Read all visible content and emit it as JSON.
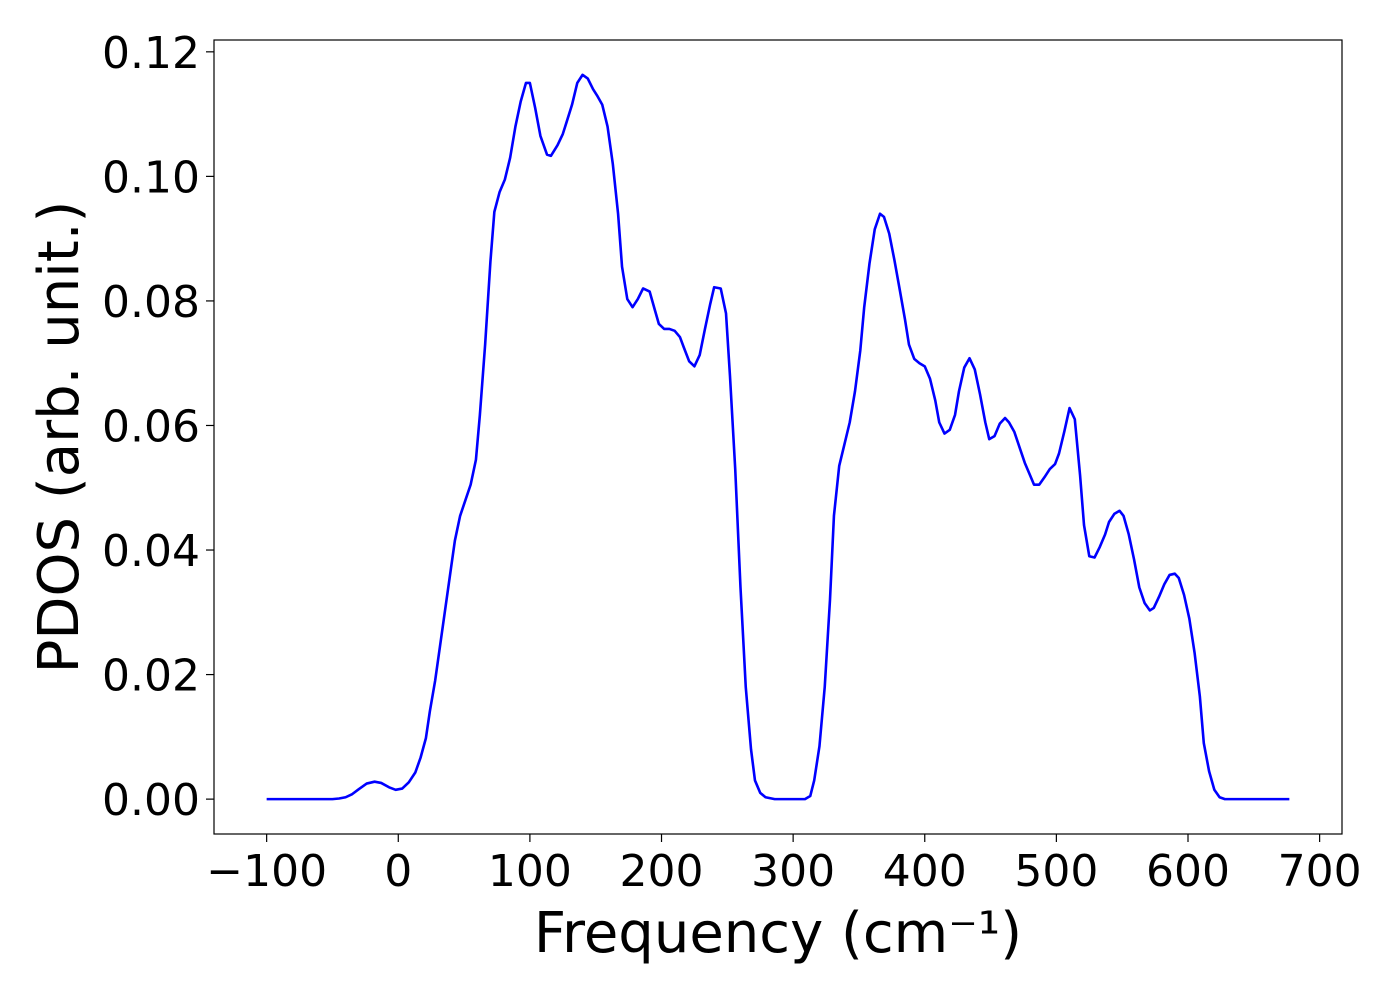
{
  "chart_data": {
    "type": "line",
    "xlabel": "Frequency (cm⁻¹)",
    "ylabel": "PDOS (arb. unit.)",
    "color": "#0000ff",
    "x": [
      -100,
      -80,
      -60,
      -50,
      -45,
      -40,
      -35,
      -30,
      -24,
      -18,
      -13,
      -7,
      -2,
      3,
      8,
      13,
      17,
      21,
      24,
      28,
      32,
      36,
      40,
      43,
      47,
      51,
      55,
      59,
      62,
      66,
      70,
      73,
      77,
      81,
      85,
      89,
      93,
      97,
      100,
      104,
      108,
      113,
      116,
      121,
      125,
      128,
      132,
      136,
      140,
      144,
      148,
      151,
      155,
      159,
      163,
      167,
      170,
      174,
      178,
      182,
      186,
      191,
      195,
      198,
      202,
      206,
      210,
      214,
      217,
      221,
      225,
      229,
      233,
      237,
      240,
      245,
      249,
      252,
      256,
      260,
      264,
      268,
      271,
      275,
      279,
      286,
      309,
      313,
      316,
      320,
      324,
      328,
      331,
      335,
      339,
      343,
      347,
      351,
      354,
      358,
      362,
      366,
      369,
      373,
      377,
      381,
      385,
      388,
      392,
      396,
      400,
      404,
      408,
      411,
      415,
      419,
      423,
      426,
      430,
      434,
      438,
      442,
      446,
      449,
      453,
      457,
      461,
      464,
      468,
      472,
      476,
      480,
      483,
      487,
      491,
      495,
      499,
      502,
      506,
      510,
      514,
      518,
      521,
      525,
      529,
      533,
      537,
      540,
      544,
      548,
      551,
      555,
      559,
      563,
      567,
      571,
      574,
      578,
      582,
      586,
      590,
      593,
      597,
      601,
      605,
      609,
      612,
      616,
      620,
      624,
      628,
      650,
      677
    ],
    "values": [
      0,
      0,
      0,
      0,
      0.0001,
      0.0003,
      0.0008,
      0.0016,
      0.0025,
      0.0028,
      0.0026,
      0.0019,
      0.0015,
      0.0017,
      0.0027,
      0.0043,
      0.0067,
      0.0098,
      0.0141,
      0.019,
      0.025,
      0.031,
      0.037,
      0.0415,
      0.0455,
      0.048,
      0.0505,
      0.0545,
      0.0617,
      0.073,
      0.0863,
      0.0943,
      0.0975,
      0.0995,
      0.103,
      0.108,
      0.112,
      0.115,
      0.115,
      0.111,
      0.1065,
      0.1035,
      0.1033,
      0.105,
      0.1068,
      0.1088,
      0.1115,
      0.115,
      0.1163,
      0.1157,
      0.114,
      0.113,
      0.1115,
      0.108,
      0.102,
      0.094,
      0.0855,
      0.0803,
      0.079,
      0.0803,
      0.082,
      0.0815,
      0.0785,
      0.0763,
      0.0755,
      0.0755,
      0.0752,
      0.0742,
      0.0725,
      0.0703,
      0.0695,
      0.0713,
      0.0755,
      0.0795,
      0.0822,
      0.082,
      0.078,
      0.068,
      0.053,
      0.034,
      0.018,
      0.008,
      0.003,
      0.001,
      0.0003,
      0,
      0,
      0.0005,
      0.003,
      0.0085,
      0.018,
      0.032,
      0.0455,
      0.0535,
      0.057,
      0.0605,
      0.0655,
      0.072,
      0.079,
      0.086,
      0.0915,
      0.094,
      0.0935,
      0.0908,
      0.0865,
      0.0818,
      0.077,
      0.073,
      0.0707,
      0.07,
      0.0695,
      0.0675,
      0.064,
      0.0605,
      0.0587,
      0.0593,
      0.0617,
      0.0655,
      0.0693,
      0.0708,
      0.069,
      0.065,
      0.0605,
      0.0578,
      0.0583,
      0.0603,
      0.0612,
      0.0605,
      0.059,
      0.0565,
      0.054,
      0.052,
      0.0505,
      0.0505,
      0.0517,
      0.053,
      0.0538,
      0.0555,
      0.059,
      0.0628,
      0.061,
      0.052,
      0.044,
      0.039,
      0.0388,
      0.0405,
      0.0425,
      0.0445,
      0.0458,
      0.0463,
      0.0455,
      0.0425,
      0.0385,
      0.034,
      0.0315,
      0.0303,
      0.0307,
      0.0325,
      0.0345,
      0.036,
      0.0362,
      0.0355,
      0.0328,
      0.029,
      0.0235,
      0.0165,
      0.009,
      0.0045,
      0.0015,
      0.0003,
      0,
      0,
      0
    ],
    "xlim": [
      -140,
      717
    ],
    "ylim": [
      -0.0056,
      0.1219
    ],
    "xticks": [
      {
        "value": -100,
        "label": "−100"
      },
      0,
      100,
      200,
      300,
      400,
      500,
      600,
      700
    ],
    "yticks": [
      {
        "value": 0,
        "label": "0.00"
      },
      {
        "value": 0.02,
        "label": "0.02"
      },
      {
        "value": 0.04,
        "label": "0.04"
      },
      {
        "value": 0.06,
        "label": "0.06"
      },
      {
        "value": 0.08,
        "label": "0.08"
      },
      {
        "value": 0.1,
        "label": "0.10"
      },
      {
        "value": 0.12,
        "label": "0.12"
      }
    ],
    "grid": false
  }
}
